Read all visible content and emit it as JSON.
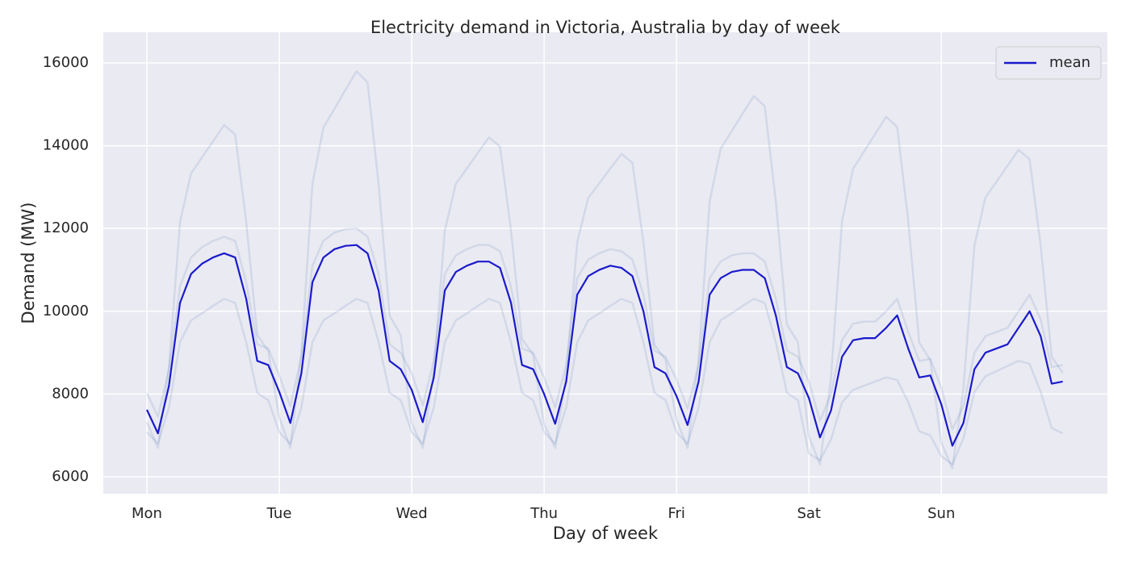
{
  "chart_data": {
    "type": "line",
    "title": "Electricity demand in Victoria, Australia by day of week",
    "xlabel": "Day of week",
    "ylabel": "Demand (MW)",
    "x": [
      0,
      2,
      4,
      6,
      8,
      10,
      12,
      14,
      16,
      18,
      20,
      22,
      24,
      26,
      28,
      30,
      32,
      34,
      36,
      38,
      40,
      42,
      44,
      46,
      48,
      50,
      52,
      54,
      56,
      58,
      60,
      62,
      64,
      66,
      68,
      70,
      72,
      74,
      76,
      78,
      80,
      82,
      84,
      86,
      88,
      90,
      92,
      94,
      96,
      98,
      100,
      102,
      104,
      106,
      108,
      110,
      112,
      114,
      116,
      118,
      120,
      122,
      124,
      126,
      128,
      130,
      132,
      134,
      136,
      138,
      140,
      142,
      144,
      146,
      148,
      150,
      152,
      154,
      156,
      158,
      160,
      162,
      164,
      166
    ],
    "xlim": [
      -7.9,
      174.1
    ],
    "xticks": [
      {
        "value": 0,
        "label": "Mon"
      },
      {
        "value": 24,
        "label": "Tue"
      },
      {
        "value": 48,
        "label": "Wed"
      },
      {
        "value": 72,
        "label": "Thu"
      },
      {
        "value": 96,
        "label": "Fri"
      },
      {
        "value": 120,
        "label": "Sat"
      },
      {
        "value": 144,
        "label": "Sun"
      }
    ],
    "ylim": [
      5590,
      16740
    ],
    "yticks": [
      6000,
      8000,
      10000,
      12000,
      14000,
      16000
    ],
    "grid": true,
    "legend": "upper right",
    "series": [
      {
        "color": "#4c72b0",
        "alpha": 0.15,
        "values": [
          7320,
          6700,
          8650,
          12160,
          13330,
          13720,
          14110,
          14500,
          14270,
          12160,
          9430,
          9040,
          7430,
          6700,
          8980,
          13070,
          14440,
          14890,
          15350,
          15800,
          15530,
          13070,
          9890,
          9430,
          7300,
          6700,
          8580,
          11950,
          13080,
          13450,
          13830,
          14200,
          13980,
          11950,
          9330,
          8950,
          7270,
          6700,
          8480,
          11670,
          12740,
          13090,
          13450,
          13800,
          13590,
          11670,
          9190,
          8830,
          7380,
          6700,
          8830,
          12650,
          13930,
          14350,
          14780,
          15200,
          14950,
          12650,
          9680,
          9250,
          6970,
          6300,
          8400,
          12180,
          13440,
          13860,
          14280,
          14700,
          14450,
          12180,
          9240,
          8820,
          6820,
          6200,
          8130,
          11590,
          12750,
          13130,
          13520,
          13900,
          13670,
          11590,
          8900,
          8510
        ]
      },
      {
        "color": "#4c72b0",
        "alpha": 0.15,
        "values": [
          7080,
          6800,
          7680,
          9250,
          9780,
          9950,
          10130,
          10300,
          10200,
          9250,
          8030,
          7850,
          7080,
          6800,
          7680,
          9250,
          9780,
          9950,
          10130,
          10300,
          10200,
          9250,
          8030,
          7850,
          7080,
          6800,
          7680,
          9250,
          9780,
          9950,
          10130,
          10300,
          10200,
          9250,
          8030,
          7850,
          7080,
          6800,
          7680,
          9250,
          9780,
          9950,
          10130,
          10300,
          10200,
          9250,
          8030,
          7850,
          7080,
          6800,
          7680,
          9250,
          9780,
          9950,
          10130,
          10300,
          10200,
          9250,
          8030,
          7850,
          6560,
          6400,
          6900,
          7800,
          8100,
          8200,
          8300,
          8400,
          8340,
          7800,
          7100,
          7000,
          6500,
          6300,
          6930,
          8050,
          8430,
          8550,
          8680,
          8800,
          8730,
          8050,
          7180,
          7050
        ]
      },
      {
        "color": "#4c72b0",
        "alpha": 0.15,
        "values": [
          8020,
          7450,
          8600,
          10600,
          11300,
          11550,
          11700,
          11800,
          11700,
          10700,
          9200,
          9100,
          8450,
          7700,
          8900,
          11100,
          11700,
          11900,
          11980,
          12000,
          11800,
          10900,
          9200,
          9000,
          8500,
          7720,
          8800,
          10900,
          11350,
          11500,
          11600,
          11600,
          11450,
          10600,
          9100,
          9000,
          8400,
          7680,
          8700,
          10800,
          11250,
          11400,
          11500,
          11450,
          11250,
          10400,
          9050,
          8900,
          8350,
          7650,
          8700,
          10800,
          11200,
          11350,
          11400,
          11400,
          11200,
          10300,
          9050,
          8900,
          8300,
          7350,
          8000,
          9300,
          9700,
          9750,
          9750,
          10000,
          10300,
          9500,
          8800,
          8850,
          8150,
          7150,
          7700,
          9000,
          9400,
          9500,
          9600,
          10000,
          10400,
          9800,
          8650,
          8700
        ]
      },
      {
        "name": "mean",
        "color": "#1a1acd",
        "alpha": 1,
        "values": [
          7620,
          7050,
          8200,
          10200,
          10900,
          11150,
          11300,
          11400,
          11300,
          10300,
          8800,
          8700,
          8050,
          7300,
          8500,
          10700,
          11300,
          11500,
          11580,
          11600,
          11400,
          10500,
          8800,
          8600,
          8100,
          7320,
          8400,
          10500,
          10950,
          11100,
          11200,
          11200,
          11050,
          10200,
          8700,
          8600,
          8000,
          7280,
          8300,
          10400,
          10850,
          11000,
          11100,
          11050,
          10850,
          10000,
          8650,
          8500,
          7950,
          7250,
          8300,
          10400,
          10800,
          10950,
          11000,
          11000,
          10800,
          9900,
          8650,
          8500,
          7900,
          6950,
          7600,
          8900,
          9300,
          9350,
          9350,
          9600,
          9900,
          9100,
          8400,
          8450,
          7750,
          6750,
          7300,
          8600,
          9000,
          9100,
          9200,
          9600,
          10000,
          9400,
          8250,
          8300
        ]
      }
    ]
  }
}
